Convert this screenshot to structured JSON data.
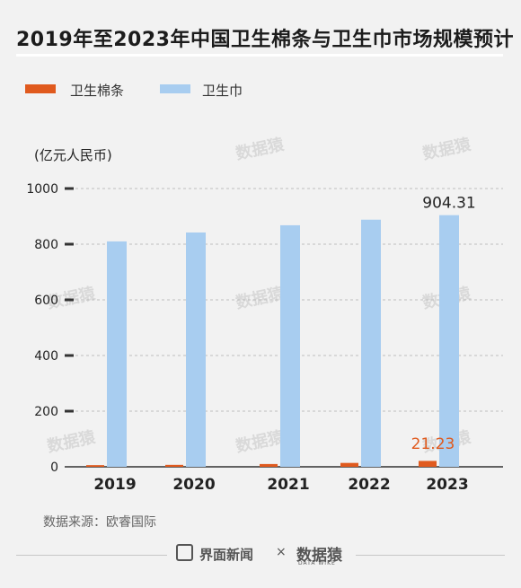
{
  "title": "2019年至2023年中国卫生棉条与卫生巾市场规模预计",
  "unit_label": "(亿元人民币)",
  "source": "数据来源：欧睿国际",
  "footer": {
    "brand": "界面新闻",
    "separator": "×",
    "partner": "数据猿",
    "partner_sub": "DATA WIKE"
  },
  "watermark_text": "数据猿",
  "colors": {
    "tampon": "#e05a1e",
    "pad": "#a8cdf0",
    "axis": "#333333",
    "grid": "#bdbdbd",
    "background": "#f2f2f2"
  },
  "chart_data": {
    "type": "bar",
    "categories": [
      "2019",
      "2020",
      "2021",
      "2022",
      "2023"
    ],
    "series": [
      {
        "name": "卫生棉条",
        "values": [
          6,
          7,
          10,
          14,
          21.23
        ]
      },
      {
        "name": "卫生巾",
        "values": [
          810,
          842,
          868,
          888,
          904.31
        ]
      }
    ],
    "ylabel": "(亿元人民币)",
    "ylim": [
      0,
      1000
    ],
    "yticks": [
      0,
      200,
      400,
      600,
      800,
      1000
    ],
    "grid": true,
    "legend": "top-left",
    "data_labels": [
      {
        "series": "卫生巾",
        "category": "2023",
        "text": "904.31"
      },
      {
        "series": "卫生棉条",
        "category": "2023",
        "text": "21.23"
      }
    ]
  }
}
